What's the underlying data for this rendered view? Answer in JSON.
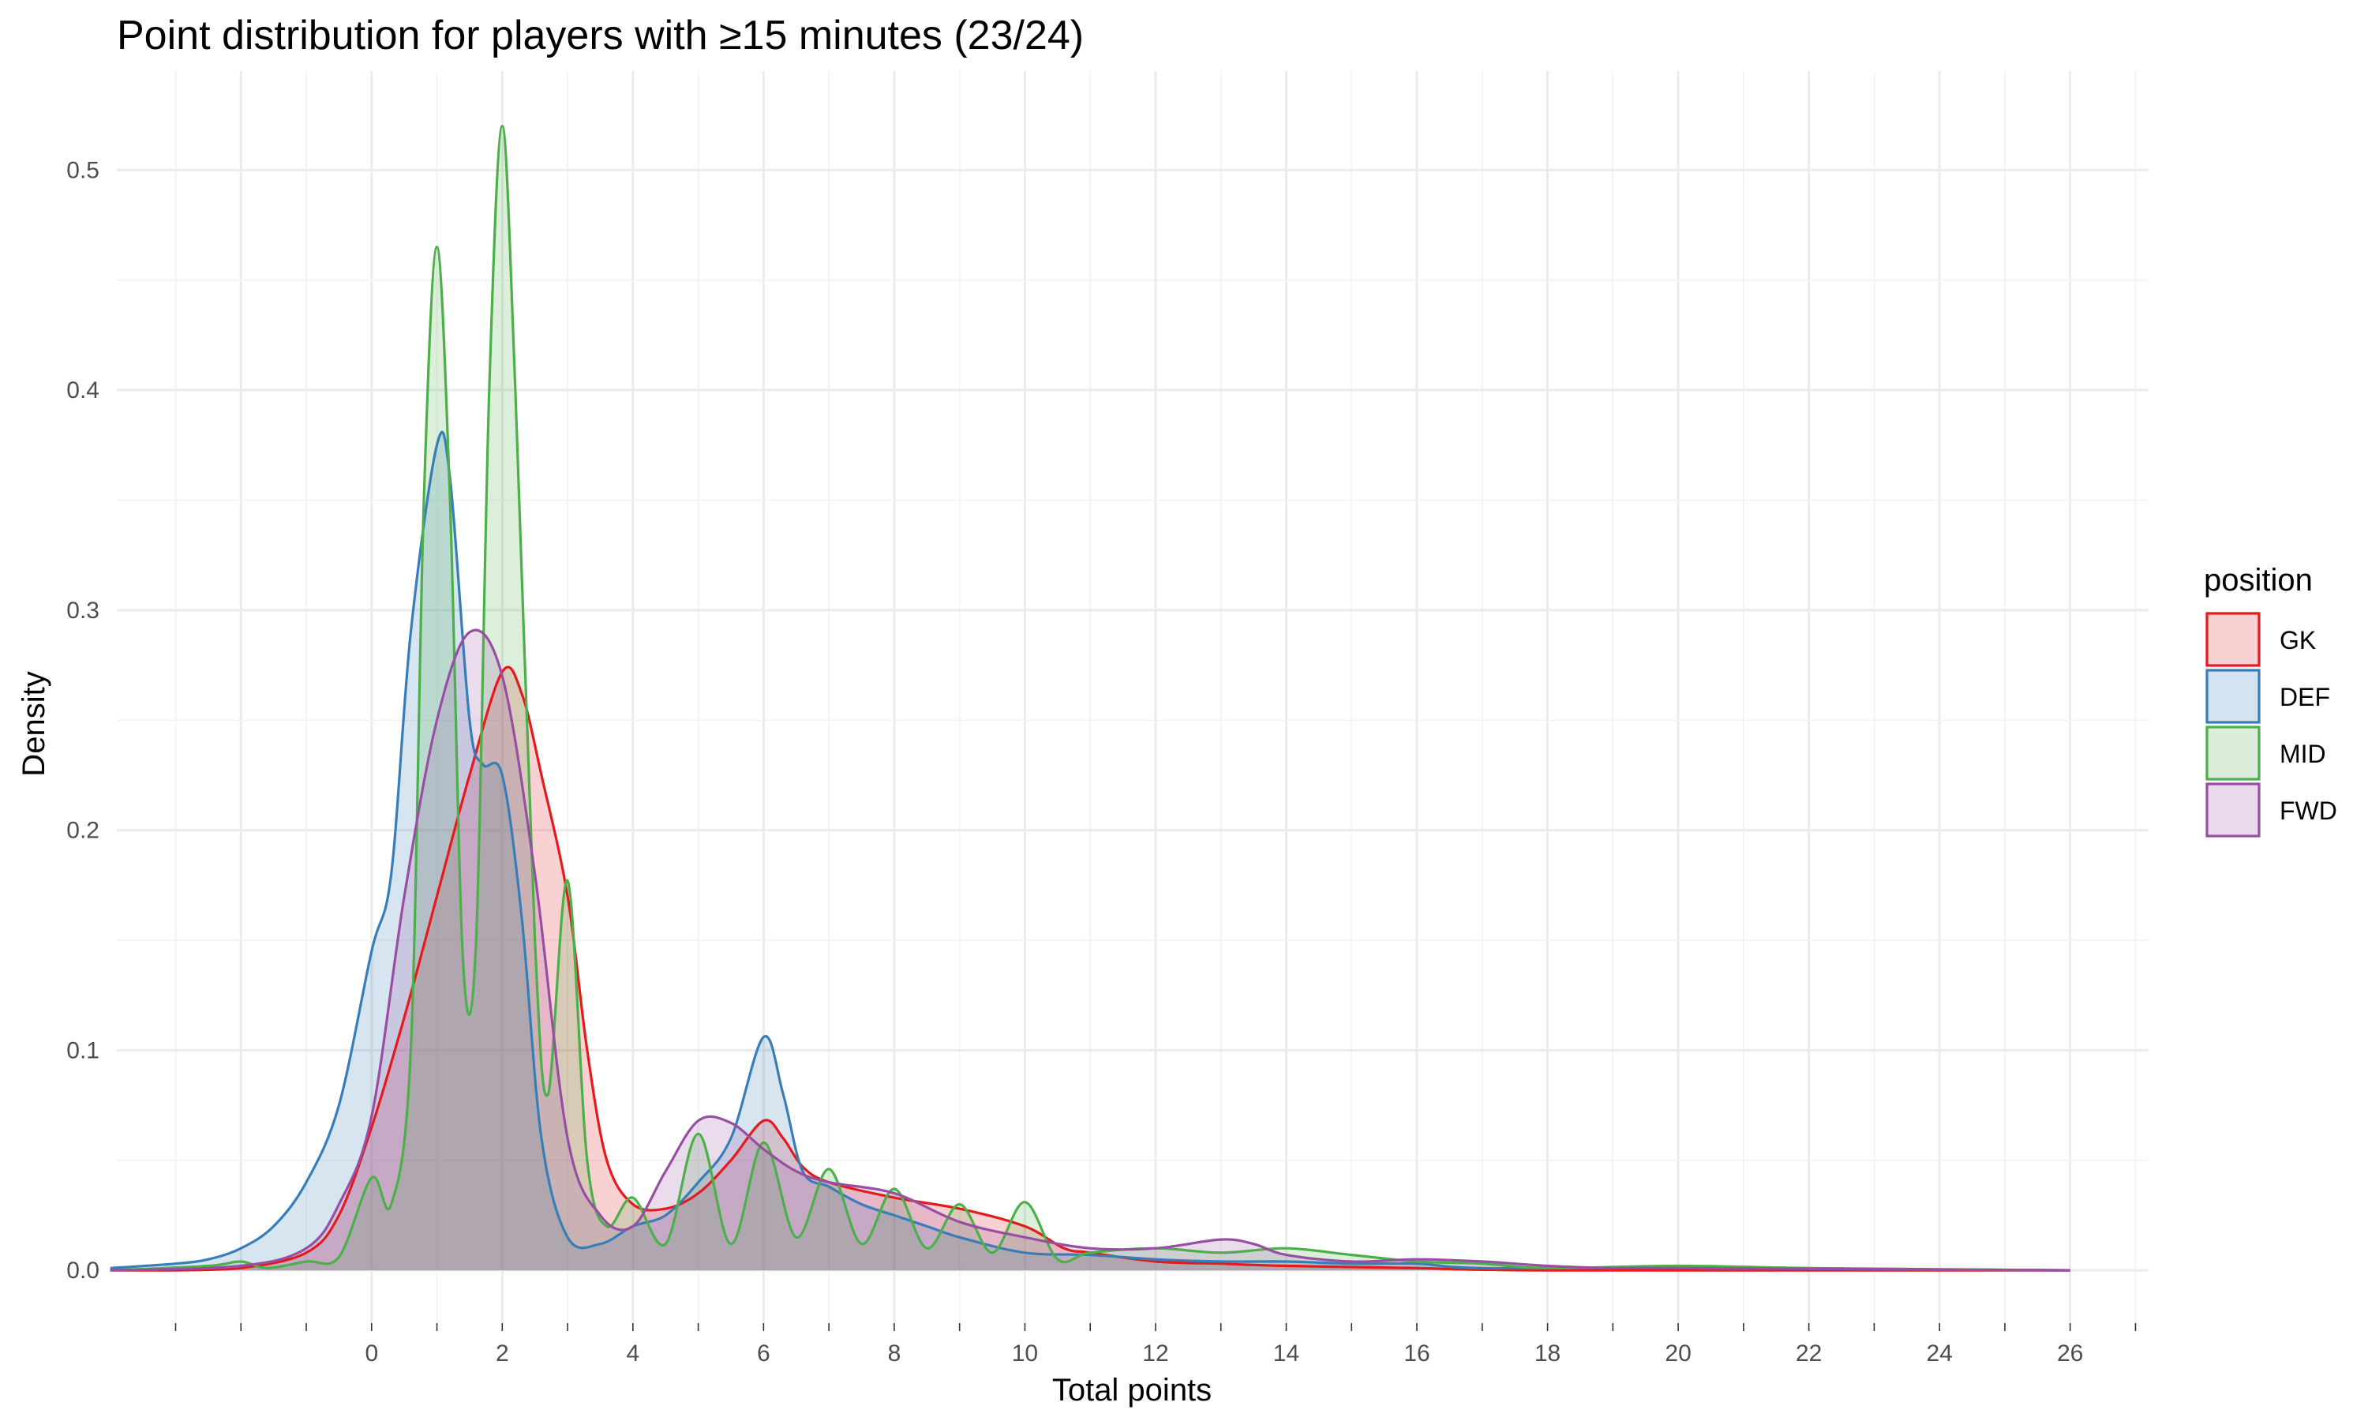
{
  "chart_data": {
    "type": "area",
    "subtype": "density",
    "title": "Point distribution for players with ≥15 minutes (23/24)",
    "xlabel": "Total points",
    "ylabel": "Density",
    "xlim": [
      -3.9,
      27.2
    ],
    "ylim": [
      -0.024,
      0.545
    ],
    "x_ticks": [
      0,
      2,
      4,
      6,
      8,
      10,
      12,
      14,
      16,
      18,
      20,
      22,
      24,
      26
    ],
    "x_tick_labels": [
      "0",
      "2",
      "4",
      "6",
      "8",
      "10",
      "12",
      "14",
      "16",
      "18",
      "20",
      "22",
      "24",
      "26"
    ],
    "y_ticks": [
      0.0,
      0.1,
      0.2,
      0.3,
      0.4,
      0.5
    ],
    "y_tick_labels": [
      "0.0",
      "0.1",
      "0.2",
      "0.3",
      "0.4",
      "0.5"
    ],
    "grid": true,
    "legend": {
      "title": "position",
      "placement": "right"
    },
    "series": [
      {
        "name": "GK",
        "color": "#e41a1c",
        "fill": "#f8d1d2",
        "points": [
          [
            -4,
            0
          ],
          [
            -3,
            0
          ],
          [
            -2,
            0.001
          ],
          [
            -1,
            0.008
          ],
          [
            -0.5,
            0.025
          ],
          [
            0,
            0.065
          ],
          [
            0.5,
            0.115
          ],
          [
            1,
            0.17
          ],
          [
            1.5,
            0.225
          ],
          [
            2,
            0.272
          ],
          [
            2.3,
            0.262
          ],
          [
            2.6,
            0.225
          ],
          [
            3,
            0.17
          ],
          [
            3.3,
            0.1
          ],
          [
            3.6,
            0.05
          ],
          [
            4,
            0.03
          ],
          [
            4.5,
            0.028
          ],
          [
            5,
            0.035
          ],
          [
            5.5,
            0.05
          ],
          [
            6,
            0.068
          ],
          [
            6.3,
            0.06
          ],
          [
            6.6,
            0.047
          ],
          [
            7,
            0.04
          ],
          [
            8,
            0.033
          ],
          [
            9,
            0.028
          ],
          [
            10,
            0.02
          ],
          [
            10.6,
            0.01
          ],
          [
            11,
            0.008
          ],
          [
            12,
            0.004
          ],
          [
            13,
            0.003
          ],
          [
            14,
            0.002
          ],
          [
            16,
            0.001
          ],
          [
            18,
            0
          ],
          [
            26,
            0
          ]
        ]
      },
      {
        "name": "DEF",
        "color": "#377eb8",
        "fill": "#d4e3f1",
        "points": [
          [
            -4,
            0.001
          ],
          [
            -3,
            0.003
          ],
          [
            -2.5,
            0.005
          ],
          [
            -2,
            0.01
          ],
          [
            -1.5,
            0.02
          ],
          [
            -1,
            0.04
          ],
          [
            -0.5,
            0.075
          ],
          [
            0,
            0.145
          ],
          [
            0.3,
            0.18
          ],
          [
            0.6,
            0.29
          ],
          [
            1,
            0.375
          ],
          [
            1.2,
            0.36
          ],
          [
            1.5,
            0.25
          ],
          [
            1.7,
            0.23
          ],
          [
            2,
            0.225
          ],
          [
            2.3,
            0.16
          ],
          [
            2.6,
            0.06
          ],
          [
            3,
            0.015
          ],
          [
            3.5,
            0.012
          ],
          [
            4,
            0.02
          ],
          [
            4.5,
            0.025
          ],
          [
            5,
            0.04
          ],
          [
            5.5,
            0.06
          ],
          [
            6,
            0.106
          ],
          [
            6.3,
            0.08
          ],
          [
            6.6,
            0.045
          ],
          [
            7,
            0.038
          ],
          [
            7.5,
            0.03
          ],
          [
            8,
            0.025
          ],
          [
            8.5,
            0.02
          ],
          [
            9,
            0.015
          ],
          [
            10,
            0.008
          ],
          [
            11,
            0.007
          ],
          [
            12,
            0.005
          ],
          [
            13,
            0.004
          ],
          [
            14,
            0.004
          ],
          [
            15,
            0.003
          ],
          [
            16,
            0.003
          ],
          [
            17,
            0.001
          ],
          [
            20,
            0.001
          ],
          [
            26,
            0
          ]
        ]
      },
      {
        "name": "MID",
        "color": "#4daf4a",
        "fill": "#dceedb",
        "points": [
          [
            -4,
            0
          ],
          [
            -2.5,
            0.002
          ],
          [
            -2,
            0.004
          ],
          [
            -1.6,
            0.001
          ],
          [
            -1,
            0.004
          ],
          [
            -0.5,
            0.006
          ],
          [
            0,
            0.042
          ],
          [
            0.3,
            0.03
          ],
          [
            0.6,
            0.1
          ],
          [
            0.8,
            0.35
          ],
          [
            1,
            0.465
          ],
          [
            1.2,
            0.35
          ],
          [
            1.4,
            0.14
          ],
          [
            1.6,
            0.15
          ],
          [
            1.8,
            0.4
          ],
          [
            2,
            0.52
          ],
          [
            2.2,
            0.4
          ],
          [
            2.5,
            0.15
          ],
          [
            2.7,
            0.08
          ],
          [
            3,
            0.177
          ],
          [
            3.3,
            0.05
          ],
          [
            3.6,
            0.02
          ],
          [
            4,
            0.033
          ],
          [
            4.5,
            0.012
          ],
          [
            5,
            0.062
          ],
          [
            5.5,
            0.012
          ],
          [
            6,
            0.058
          ],
          [
            6.5,
            0.015
          ],
          [
            7,
            0.046
          ],
          [
            7.5,
            0.012
          ],
          [
            8,
            0.037
          ],
          [
            8.5,
            0.01
          ],
          [
            9,
            0.03
          ],
          [
            9.5,
            0.008
          ],
          [
            10,
            0.031
          ],
          [
            10.5,
            0.005
          ],
          [
            11,
            0.008
          ],
          [
            12,
            0.01
          ],
          [
            13,
            0.008
          ],
          [
            14,
            0.01
          ],
          [
            15,
            0.007
          ],
          [
            16,
            0.004
          ],
          [
            17,
            0.003
          ],
          [
            18,
            0.001
          ],
          [
            20,
            0.002
          ],
          [
            22,
            0.001
          ],
          [
            26,
            0
          ]
        ]
      },
      {
        "name": "FWD",
        "color": "#984ea3",
        "fill": "#e8daea",
        "points": [
          [
            -4,
            0
          ],
          [
            -2,
            0.002
          ],
          [
            -1,
            0.01
          ],
          [
            -0.5,
            0.03
          ],
          [
            0,
            0.07
          ],
          [
            0.5,
            0.17
          ],
          [
            1,
            0.25
          ],
          [
            1.5,
            0.29
          ],
          [
            2,
            0.27
          ],
          [
            2.5,
            0.18
          ],
          [
            3,
            0.06
          ],
          [
            3.5,
            0.025
          ],
          [
            4,
            0.02
          ],
          [
            4.5,
            0.045
          ],
          [
            5,
            0.068
          ],
          [
            5.5,
            0.067
          ],
          [
            6,
            0.055
          ],
          [
            6.5,
            0.045
          ],
          [
            7,
            0.04
          ],
          [
            8,
            0.035
          ],
          [
            9,
            0.022
          ],
          [
            10,
            0.015
          ],
          [
            11,
            0.01
          ],
          [
            12,
            0.01
          ],
          [
            13,
            0.014
          ],
          [
            13.5,
            0.012
          ],
          [
            14,
            0.007
          ],
          [
            15,
            0.004
          ],
          [
            16,
            0.005
          ],
          [
            17,
            0.004
          ],
          [
            18,
            0.002
          ],
          [
            19,
            0.001
          ],
          [
            20,
            0.001
          ],
          [
            26,
            0
          ]
        ]
      }
    ]
  }
}
